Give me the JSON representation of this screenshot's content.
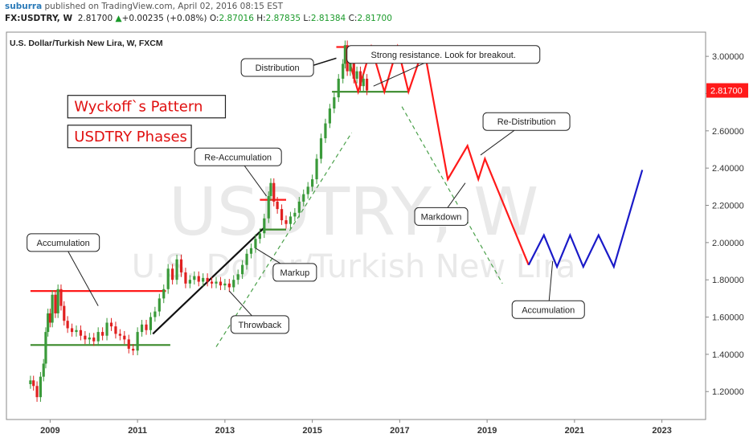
{
  "header": {
    "author": "suburra",
    "published_text": "published on TradingView.com, April 02, 2016 08:15 EST"
  },
  "quote": {
    "symbol": "FX:USDTRY, W",
    "last": "2.81700",
    "arrow": "▲",
    "change": "+0.00235 (+0.08%)",
    "o_label": "O:",
    "o_val": "2.87016",
    "h_label": "H:",
    "h_val": "2.87835",
    "l_label": "L:",
    "l_val": "2.81384",
    "c_label": "C:",
    "c_val": "2.81700"
  },
  "chart_data": {
    "type": "line",
    "title": "U.S. Dollar/Turkish New Lira, W, FXCM",
    "watermark_symbol": "USDTRY, W",
    "watermark_name": "U.S. Dollar/Turkish New Lira",
    "xlim": [
      2008.0,
      2024.0
    ],
    "ylim": [
      1.05,
      3.13
    ],
    "y_ticks": [
      "1.20000",
      "1.40000",
      "1.60000",
      "1.80000",
      "2.00000",
      "2.20000",
      "2.40000",
      "2.60000",
      "2.80000",
      "3.00000"
    ],
    "y_tick_values": [
      1.2,
      1.4,
      1.6,
      1.8,
      2.0,
      2.2,
      2.4,
      2.6,
      2.8,
      3.0
    ],
    "x_ticks": [
      "2009",
      "2011",
      "2013",
      "2015",
      "2017",
      "2019",
      "2021",
      "2023"
    ],
    "x_tick_values": [
      2009,
      2011,
      2013,
      2015,
      2017,
      2019,
      2021,
      2023
    ],
    "last_price": {
      "value": 2.817,
      "label": "2.81700",
      "color": "#ff1a1a"
    },
    "price_series": {
      "name": "USDTRY",
      "up_color": "#3a9a3a",
      "down_color": "#e02020",
      "points": [
        [
          2008.55,
          1.26
        ],
        [
          2008.62,
          1.23
        ],
        [
          2008.7,
          1.17
        ],
        [
          2008.78,
          1.28
        ],
        [
          2008.85,
          1.35
        ],
        [
          2008.9,
          1.52
        ],
        [
          2008.95,
          1.62
        ],
        [
          2009.0,
          1.57
        ],
        [
          2009.05,
          1.72
        ],
        [
          2009.12,
          1.62
        ],
        [
          2009.18,
          1.75
        ],
        [
          2009.25,
          1.66
        ],
        [
          2009.32,
          1.58
        ],
        [
          2009.4,
          1.54
        ],
        [
          2009.5,
          1.52
        ],
        [
          2009.6,
          1.53
        ],
        [
          2009.7,
          1.5
        ],
        [
          2009.8,
          1.48
        ],
        [
          2009.9,
          1.49
        ],
        [
          2010.0,
          1.47
        ],
        [
          2010.1,
          1.52
        ],
        [
          2010.2,
          1.5
        ],
        [
          2010.3,
          1.57
        ],
        [
          2010.4,
          1.55
        ],
        [
          2010.5,
          1.51
        ],
        [
          2010.6,
          1.5
        ],
        [
          2010.7,
          1.48
        ],
        [
          2010.8,
          1.43
        ],
        [
          2010.9,
          1.42
        ],
        [
          2011.0,
          1.52
        ],
        [
          2011.1,
          1.56
        ],
        [
          2011.2,
          1.53
        ],
        [
          2011.3,
          1.6
        ],
        [
          2011.4,
          1.63
        ],
        [
          2011.5,
          1.7
        ],
        [
          2011.6,
          1.75
        ],
        [
          2011.7,
          1.86
        ],
        [
          2011.8,
          1.8
        ],
        [
          2011.9,
          1.91
        ],
        [
          2012.0,
          1.84
        ],
        [
          2012.1,
          1.78
        ],
        [
          2012.2,
          1.8
        ],
        [
          2012.3,
          1.82
        ],
        [
          2012.4,
          1.79
        ],
        [
          2012.5,
          1.81
        ],
        [
          2012.6,
          1.79
        ],
        [
          2012.7,
          1.78
        ],
        [
          2012.8,
          1.79
        ],
        [
          2012.9,
          1.77
        ],
        [
          2013.0,
          1.78
        ],
        [
          2013.1,
          1.76
        ],
        [
          2013.2,
          1.8
        ],
        [
          2013.3,
          1.83
        ],
        [
          2013.4,
          1.88
        ],
        [
          2013.5,
          1.94
        ],
        [
          2013.6,
          1.97
        ],
        [
          2013.7,
          2.02
        ],
        [
          2013.8,
          2.05
        ],
        [
          2013.9,
          2.13
        ],
        [
          2014.0,
          2.25
        ],
        [
          2014.05,
          2.32
        ],
        [
          2014.12,
          2.22
        ],
        [
          2014.2,
          2.18
        ],
        [
          2014.3,
          2.12
        ],
        [
          2014.4,
          2.1
        ],
        [
          2014.5,
          2.14
        ],
        [
          2014.6,
          2.16
        ],
        [
          2014.7,
          2.22
        ],
        [
          2014.8,
          2.26
        ],
        [
          2014.9,
          2.3
        ],
        [
          2015.0,
          2.34
        ],
        [
          2015.1,
          2.45
        ],
        [
          2015.2,
          2.56
        ],
        [
          2015.3,
          2.64
        ],
        [
          2015.4,
          2.72
        ],
        [
          2015.5,
          2.78
        ],
        [
          2015.6,
          2.88
        ],
        [
          2015.7,
          2.96
        ],
        [
          2015.75,
          3.06
        ],
        [
          2015.8,
          2.92
        ],
        [
          2015.87,
          2.97
        ],
        [
          2015.95,
          2.88
        ],
        [
          2016.02,
          2.92
        ],
        [
          2016.1,
          2.84
        ],
        [
          2016.17,
          2.88
        ],
        [
          2016.25,
          2.817
        ]
      ]
    },
    "lines": [
      {
        "name": "accumulation-resistance",
        "color": "#ff1a1a",
        "width": 2.2,
        "points": [
          [
            2008.55,
            1.74
          ],
          [
            2011.65,
            1.74
          ]
        ]
      },
      {
        "name": "accumulation-support",
        "color": "#3a8a2a",
        "width": 2.2,
        "points": [
          [
            2008.55,
            1.45
          ],
          [
            2011.75,
            1.45
          ]
        ]
      },
      {
        "name": "reaccumulation-resistance",
        "color": "#ff1a1a",
        "width": 2.2,
        "points": [
          [
            2013.8,
            2.23
          ],
          [
            2014.4,
            2.23
          ]
        ]
      },
      {
        "name": "reaccumulation-support",
        "color": "#3a8a2a",
        "width": 2.2,
        "points": [
          [
            2013.8,
            2.07
          ],
          [
            2014.4,
            2.07
          ]
        ]
      },
      {
        "name": "distribution-resistance",
        "color": "#ff1a1a",
        "width": 2.2,
        "points": [
          [
            2015.55,
            3.05
          ],
          [
            2017.2,
            3.05
          ]
        ]
      },
      {
        "name": "distribution-support",
        "color": "#3a8a2a",
        "width": 2.2,
        "points": [
          [
            2015.45,
            2.81
          ],
          [
            2017.2,
            2.81
          ]
        ]
      },
      {
        "name": "markup-trend",
        "color": "#111111",
        "width": 2.2,
        "points": [
          [
            2011.35,
            1.51
          ],
          [
            2013.9,
            2.08
          ]
        ]
      },
      {
        "name": "distribution-arrow",
        "color": "#111111",
        "width": 1.5,
        "points": [
          [
            2015.55,
            2.99
          ],
          [
            2015.0,
            2.95
          ]
        ]
      },
      {
        "name": "throwback-channel",
        "color": "#4aa04a",
        "width": 1.2,
        "dash": "5,4",
        "points": [
          [
            2012.8,
            1.44
          ],
          [
            2015.9,
            2.59
          ]
        ]
      },
      {
        "name": "markdown-channel",
        "color": "#4aa04a",
        "width": 1.2,
        "dash": "5,4",
        "points": [
          [
            2017.05,
            2.73
          ],
          [
            2019.35,
            1.78
          ]
        ]
      },
      {
        "name": "distribution-zigzag",
        "color": "#ff1a1a",
        "width": 2.2,
        "points": [
          [
            2015.75,
            3.05
          ],
          [
            2016.05,
            2.81
          ],
          [
            2016.35,
            3.05
          ],
          [
            2016.65,
            2.81
          ],
          [
            2016.95,
            3.05
          ],
          [
            2017.2,
            2.81
          ],
          [
            2017.55,
            3.05
          ]
        ]
      },
      {
        "name": "projected-markdown",
        "color": "#ff1a1a",
        "width": 2.2,
        "points": [
          [
            2017.55,
            3.05
          ],
          [
            2018.1,
            2.34
          ],
          [
            2018.55,
            2.52
          ],
          [
            2018.8,
            2.34
          ],
          [
            2018.95,
            2.45
          ],
          [
            2019.95,
            1.88
          ]
        ]
      },
      {
        "name": "projected-accumulation",
        "color": "#1a1ac8",
        "width": 2.2,
        "points": [
          [
            2019.95,
            1.88
          ],
          [
            2020.3,
            2.04
          ],
          [
            2020.6,
            1.87
          ],
          [
            2020.9,
            2.04
          ],
          [
            2021.2,
            1.87
          ],
          [
            2021.55,
            2.04
          ],
          [
            2021.9,
            1.87
          ],
          [
            2022.55,
            2.39
          ]
        ]
      }
    ],
    "annotations": [
      {
        "text": "Accumulation",
        "tx": 2009.3,
        "ty": 2.0,
        "ax": 2010.1,
        "ay": 1.66
      },
      {
        "text": "Throwback",
        "tx": 2013.8,
        "ty": 1.56,
        "ax": 2013.1,
        "ay": 1.74
      },
      {
        "text": "Markup",
        "tx": 2014.6,
        "ty": 1.84,
        "ax": 2013.7,
        "ay": 1.97
      },
      {
        "text": "Re-Accumulation",
        "tx": 2013.3,
        "ty": 2.46,
        "ax": 2013.95,
        "ay": 2.25
      },
      {
        "text": "Distribution",
        "tx": 2014.2,
        "ty": 2.94,
        "ax": 2015.0,
        "ay": 2.92
      },
      {
        "text": "Strong resistance. Look for breakout.",
        "tx": 2018.0,
        "ty": 3.01,
        "ax": 2016.4,
        "ay": 2.84
      },
      {
        "text": "Re-Distribution",
        "tx": 2019.9,
        "ty": 2.65,
        "ax": 2018.85,
        "ay": 2.47
      },
      {
        "text": "Markdown",
        "tx": 2017.95,
        "ty": 2.14,
        "ax": 2018.5,
        "ay": 2.32
      },
      {
        "text": "Accumulation",
        "tx": 2020.4,
        "ty": 1.64,
        "ax": 2020.5,
        "ay": 1.9
      }
    ],
    "labels": [
      {
        "text": "Wyckoff`s Pattern",
        "x": 2009.55,
        "y": 2.73
      },
      {
        "text": "USDTRY Phases",
        "x": 2009.55,
        "y": 2.57
      }
    ]
  }
}
